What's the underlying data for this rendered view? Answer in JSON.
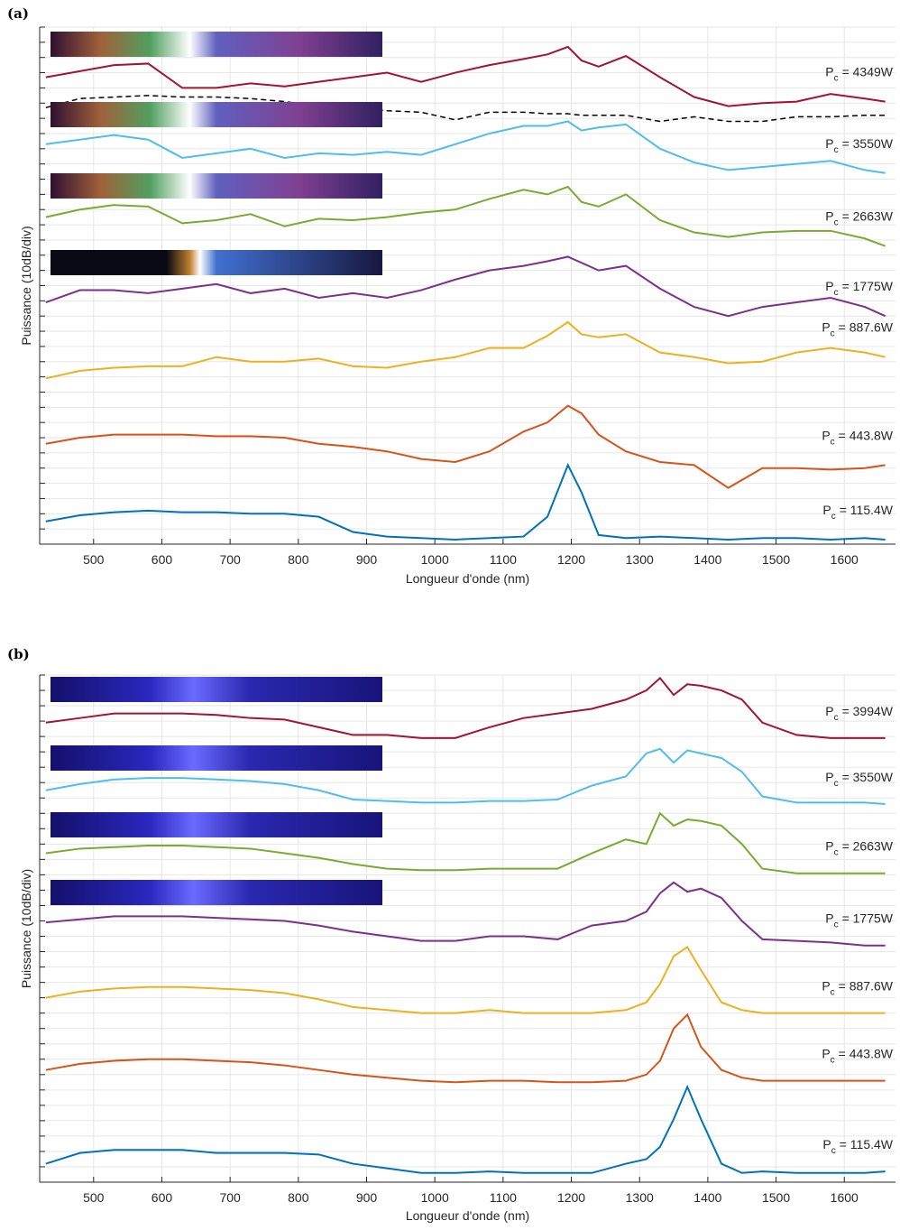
{
  "chart_data": [
    {
      "type": "line",
      "panel_label": "(a)",
      "xlabel": "Longueur d'onde (nm)",
      "ylabel": "Puissance (10dB/div)",
      "label_symbol": "P",
      "label_subscript": "c",
      "grid": true,
      "xlim": [
        421,
        1675
      ],
      "xticks": [
        500,
        600,
        700,
        800,
        900,
        1000,
        1100,
        1200,
        1300,
        1400,
        1500,
        1600
      ],
      "ylim": [
        0,
        340
      ],
      "yticks": [
        0,
        10,
        20,
        30,
        40,
        50,
        60,
        70,
        80,
        90,
        100,
        110,
        120,
        130,
        140,
        150,
        160,
        170,
        180,
        190,
        200,
        210,
        220,
        230,
        240,
        250,
        260,
        270,
        280,
        290,
        300,
        310,
        320,
        330,
        340
      ],
      "x": [
        430,
        480,
        530,
        580,
        630,
        680,
        730,
        780,
        830,
        880,
        930,
        980,
        1030,
        1080,
        1130,
        1165,
        1195,
        1215,
        1240,
        1280,
        1330,
        1380,
        1430,
        1480,
        1530,
        1580,
        1630,
        1660
      ],
      "series": [
        {
          "name": "= 4349W",
          "color": "#a2142f",
          "values": [
            307,
            311,
            315,
            316,
            300,
            300,
            303,
            301,
            304,
            307,
            310,
            304,
            310,
            315,
            319,
            322,
            327,
            318,
            314,
            321,
            307,
            294,
            288,
            290,
            291,
            296,
            293,
            291
          ]
        },
        {
          "color": "#000000",
          "dashed": true,
          "values": [
            287,
            293,
            294,
            295,
            294,
            294,
            293,
            291,
            288,
            287,
            285,
            284,
            279,
            284,
            284,
            283,
            283,
            282,
            282,
            282,
            278,
            281,
            278,
            278,
            281,
            281,
            282,
            282
          ]
        },
        {
          "name": "= 3550W",
          "color": "#4dbeee",
          "values": [
            263,
            266,
            269,
            266,
            254,
            257,
            260,
            254,
            257,
            256,
            258,
            256,
            263,
            270,
            275,
            275,
            278,
            272,
            274,
            276,
            260,
            251,
            246,
            248,
            250,
            252,
            246,
            244
          ]
        },
        {
          "name": "= 2663W",
          "color": "#77ac30",
          "values": [
            215,
            220,
            223,
            222,
            211,
            213,
            217,
            209,
            214,
            213,
            215,
            218,
            220,
            227,
            233,
            230,
            235,
            225,
            222,
            230,
            213,
            205,
            202,
            205,
            206,
            206,
            201,
            196
          ]
        },
        {
          "name": "= 1775W",
          "color": "#7e2f8e",
          "values": [
            159,
            167,
            167,
            165,
            168,
            171,
            165,
            168,
            162,
            165,
            162,
            167,
            174,
            180,
            183,
            186,
            189,
            185,
            180,
            183,
            168,
            156,
            150,
            156,
            159,
            162,
            156,
            150
          ]
        },
        {
          "name": "= 887.6W",
          "color": "#edb120",
          "values": [
            109,
            114,
            116,
            117,
            117,
            123,
            120,
            120,
            122,
            117,
            116,
            120,
            123,
            129,
            129,
            137,
            146,
            138,
            136,
            138,
            126,
            123,
            119,
            120,
            126,
            129,
            126,
            123
          ]
        },
        {
          "name": "= 443.8W",
          "color": "#d95319",
          "values": [
            66,
            70,
            72,
            72,
            72,
            71,
            71,
            70,
            66,
            64,
            61,
            56,
            54,
            61,
            74,
            80,
            91,
            86,
            72,
            61,
            54,
            52,
            37,
            50,
            50,
            49,
            50,
            52
          ]
        },
        {
          "name": "= 115.4W",
          "color": "#0072bd",
          "values": [
            15,
            19,
            21,
            22,
            21,
            21,
            20,
            20,
            18,
            8,
            5,
            4,
            3,
            4,
            5,
            18,
            52,
            34,
            6,
            4,
            5,
            4,
            3,
            4,
            4,
            3,
            4,
            3
          ]
        }
      ]
    },
    {
      "type": "line",
      "panel_label": "(b)",
      "xlabel": "Longueur d'onde (nm)",
      "ylabel": "Puissance (10dB/div)",
      "label_symbol": "P",
      "label_subscript": "c",
      "grid": true,
      "xlim": [
        421,
        1675
      ],
      "xticks": [
        500,
        600,
        700,
        800,
        900,
        1000,
        1100,
        1200,
        1300,
        1400,
        1500,
        1600
      ],
      "ylim": [
        0,
        330
      ],
      "yticks": [
        0,
        10,
        20,
        30,
        40,
        50,
        60,
        70,
        80,
        90,
        100,
        110,
        120,
        130,
        140,
        150,
        160,
        170,
        180,
        190,
        200,
        210,
        220,
        230,
        240,
        250,
        260,
        270,
        280,
        290,
        300,
        310,
        320,
        330
      ],
      "x": [
        430,
        480,
        530,
        580,
        630,
        680,
        730,
        780,
        830,
        880,
        930,
        980,
        1030,
        1080,
        1130,
        1180,
        1230,
        1280,
        1310,
        1330,
        1350,
        1370,
        1390,
        1420,
        1450,
        1480,
        1530,
        1580,
        1630,
        1660
      ],
      "series": [
        {
          "name": "= 3994W",
          "color": "#a2142f",
          "values": [
            299,
            302,
            305,
            305,
            305,
            304,
            302,
            301,
            296,
            291,
            291,
            289,
            289,
            296,
            302,
            305,
            308,
            314,
            320,
            328,
            317,
            324,
            323,
            320,
            314,
            299,
            291,
            289,
            289,
            289
          ]
        },
        {
          "name": "= 3550W",
          "color": "#4dbeee",
          "values": [
            255,
            259,
            262,
            263,
            263,
            262,
            261,
            259,
            255,
            249,
            248,
            247,
            247,
            248,
            248,
            249,
            258,
            264,
            279,
            282,
            273,
            281,
            279,
            276,
            267,
            251,
            247,
            247,
            247,
            246
          ]
        },
        {
          "name": "= 2663W",
          "color": "#77ac30",
          "values": [
            214,
            217,
            218,
            219,
            219,
            218,
            217,
            214,
            211,
            207,
            204,
            203,
            203,
            204,
            204,
            204,
            214,
            223,
            220,
            240,
            232,
            236,
            235,
            232,
            220,
            204,
            201,
            201,
            201,
            201
          ]
        },
        {
          "name": "= 1775W",
          "color": "#7e2f8e",
          "values": [
            169,
            171,
            173,
            173,
            173,
            172,
            171,
            170,
            167,
            163,
            160,
            157,
            157,
            160,
            160,
            158,
            167,
            170,
            176,
            188,
            195,
            189,
            191,
            185,
            170,
            158,
            157,
            156,
            154,
            154
          ]
        },
        {
          "name": "= 887.6W",
          "color": "#edb120",
          "values": [
            120,
            124,
            126,
            127,
            127,
            126,
            125,
            123,
            119,
            114,
            112,
            110,
            110,
            112,
            110,
            110,
            110,
            112,
            117,
            129,
            147,
            153,
            138,
            117,
            112,
            110,
            110,
            110,
            110,
            110
          ]
        },
        {
          "name": "= 443.8W",
          "color": "#d95319",
          "values": [
            73,
            77,
            79,
            80,
            80,
            79,
            78,
            76,
            73,
            70,
            68,
            66,
            65,
            66,
            66,
            65,
            65,
            66,
            70,
            79,
            100,
            109,
            88,
            73,
            68,
            66,
            66,
            66,
            66,
            66
          ]
        },
        {
          "name": "= 115.4W",
          "color": "#0072bd",
          "values": [
            12,
            19,
            21,
            21,
            21,
            19,
            19,
            19,
            18,
            12,
            9,
            6,
            6,
            7,
            6,
            6,
            6,
            12,
            15,
            23,
            41,
            62,
            41,
            12,
            6,
            7,
            6,
            6,
            6,
            7
          ]
        }
      ]
    }
  ]
}
